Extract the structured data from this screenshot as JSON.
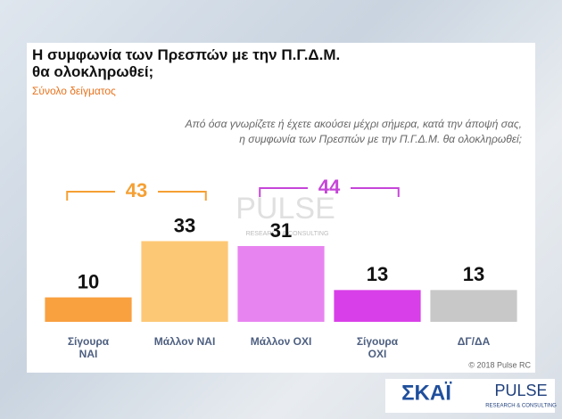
{
  "chart_data": {
    "type": "bar",
    "title": "Η συμφωνία των Πρεσπών με την Π.Γ.Δ.Μ. θα ολοκληρωθεί;",
    "subtitle": "Σύνολο δείγματος",
    "question": [
      "Από όσα γνωρίζετε ή έχετε ακούσει μέχρι σήμερα, κατά την άποψή σας,",
      "η συμφωνία των Πρεσπών με την Π.Γ.Δ.Μ. θα ολοκληρωθεί;"
    ],
    "categories": [
      "Σίγουρα ΝΑΙ",
      "Μάλλον ΝΑΙ",
      "Μάλλον ΟΧΙ",
      "Σίγουρα ΟΧΙ",
      "ΔΓ/ΔΑ"
    ],
    "values": [
      10,
      33,
      31,
      13,
      13
    ],
    "colors": [
      "#f9a03f",
      "#fdc875",
      "#e884f0",
      "#d83fe8",
      "#c8c8c8"
    ],
    "ylim": [
      0,
      70
    ],
    "group_totals": {
      "values": [
        43,
        44
      ],
      "colors": [
        "#f5a034",
        "#c645d9"
      ]
    },
    "watermark": [
      "PULSE",
      "RESEARCH & CONSULTING"
    ],
    "copyright": "© 2018 Pulse RC",
    "logos": [
      "ΣΚΑΪ",
      "PULSE",
      "RESEARCH & CONSULTING"
    ]
  }
}
